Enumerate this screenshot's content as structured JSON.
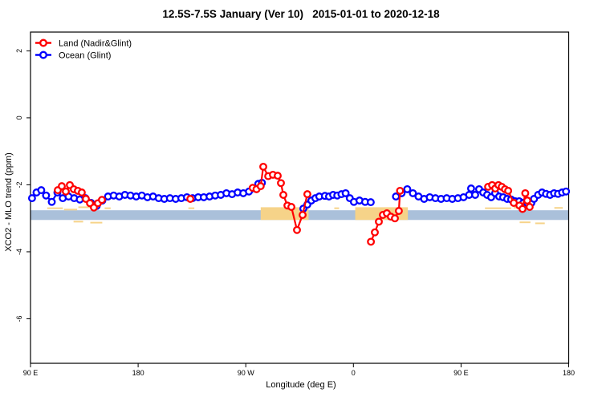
{
  "title": "12.5S-7.5S January (Ver 10)   2015-01-01 to 2020-12-18",
  "chart_data": {
    "type": "line",
    "title": "12.5S-7.5S January (Ver 10)   2015-01-01 to 2020-12-18",
    "xlabel": "Longitude (deg E)",
    "ylabel": "XCO2 - MLO trend (ppm)",
    "xlim": [
      90,
      540
    ],
    "ylim": [
      -7.33,
      2.56
    ],
    "grid": false,
    "legend_position": "top-left",
    "x_ticks": [
      {
        "lon": 90,
        "label": "90 E"
      },
      {
        "lon": 180,
        "label": "180"
      },
      {
        "lon": 270,
        "label": "90 W"
      },
      {
        "lon": 360,
        "label": "0"
      },
      {
        "lon": 450,
        "label": "90 E"
      },
      {
        "lon": 540,
        "label": "180"
      }
    ],
    "y_ticks": [
      {
        "v": 2,
        "label": "2"
      },
      {
        "v": 0,
        "label": "0"
      },
      {
        "v": -2,
        "label": "-2"
      },
      {
        "v": -4,
        "label": "-4"
      },
      {
        "v": -6,
        "label": "-6"
      }
    ],
    "bands": {
      "ocean_band": {
        "color": "#aac0da",
        "lon": [
          90,
          540
        ],
        "v_top": -2.76,
        "v_bottom": -3.05
      },
      "orange_segments": {
        "color": "#f6d389",
        "segments": [
          {
            "lon": [
              282.5,
              322.5
            ],
            "v_top": -2.67,
            "v_bottom": -3.05
          },
          {
            "lon": [
              361.5,
              405.5
            ],
            "v_top": -2.67,
            "v_bottom": -3.05
          }
        ]
      },
      "orange_speckles": {
        "color": "#f6d389",
        "marks": [
          {
            "lon": [
              104,
              117
            ],
            "v": -2.7
          },
          {
            "lon": [
              118,
              129
            ],
            "v": -2.74
          },
          {
            "lon": [
              130,
              141
            ],
            "v": -2.67
          },
          {
            "lon": [
              126,
              134
            ],
            "v": -3.1
          },
          {
            "lon": [
              140,
              150
            ],
            "v": -3.13
          },
          {
            "lon": [
              152,
              157
            ],
            "v": -2.7
          },
          {
            "lon": [
              222,
              227
            ],
            "v": -2.7
          },
          {
            "lon": [
              344,
              348
            ],
            "v": -2.7
          },
          {
            "lon": [
              470,
              492
            ],
            "v": -2.7
          },
          {
            "lon": [
              494,
              504
            ],
            "v": -2.68
          },
          {
            "lon": [
              499,
              508
            ],
            "v": -3.12
          },
          {
            "lon": [
              512,
              520
            ],
            "v": -3.15
          },
          {
            "lon": [
              528,
              535
            ],
            "v": -2.69
          }
        ]
      }
    },
    "series": [
      {
        "name": "Land (Nadir&Glint)",
        "color": "#ff0000",
        "segments": [
          [
            [
              112.8,
              -2.16
            ],
            [
              116.2,
              -2.04
            ],
            [
              119.5,
              -2.2
            ],
            [
              122.9,
              -2.01
            ],
            [
              126.2,
              -2.13
            ],
            [
              129.6,
              -2.18
            ],
            [
              132.9,
              -2.23
            ],
            [
              136.3,
              -2.42
            ],
            [
              139.7,
              -2.55
            ],
            [
              143.0,
              -2.68
            ],
            [
              146.4,
              -2.55
            ],
            [
              149.7,
              -2.45
            ]
          ],
          [
            [
              223.6,
              -2.42
            ]
          ],
          [
            [
              275.8,
              -2.09
            ],
            [
              279.0,
              -2.13
            ],
            [
              282.5,
              -2.04
            ],
            [
              284.6,
              -1.46
            ],
            [
              288.7,
              -1.74
            ],
            [
              292.7,
              -1.7
            ],
            [
              296.7,
              -1.73
            ],
            [
              299.4,
              -1.95
            ],
            [
              301.4,
              -2.3
            ],
            [
              304.8,
              -2.62
            ],
            [
              308.1,
              -2.66
            ],
            [
              312.8,
              -3.35
            ],
            [
              317.5,
              -2.9
            ],
            [
              321.5,
              -2.28
            ]
          ],
          [
            [
              374.6,
              -3.7
            ],
            [
              377.9,
              -3.42
            ],
            [
              381.3,
              -3.1
            ],
            [
              384.6,
              -2.9
            ],
            [
              388.0,
              -2.85
            ],
            [
              391.3,
              -2.95
            ],
            [
              394.7,
              -3.0
            ],
            [
              398.0,
              -2.78
            ],
            [
              399.0,
              -2.18
            ]
          ],
          [
            [
              472.6,
              -2.06
            ],
            [
              476.0,
              -2.01
            ],
            [
              478.6,
              -2.11
            ],
            [
              481.3,
              -2.01
            ],
            [
              484.0,
              -2.06
            ],
            [
              486.7,
              -2.13
            ],
            [
              489.4,
              -2.18
            ],
            [
              494.1,
              -2.54
            ],
            [
              498.8,
              -2.62
            ],
            [
              501.4,
              -2.72
            ],
            [
              503.7,
              -2.25
            ],
            [
              505.4,
              -2.47
            ],
            [
              507.4,
              -2.66
            ]
          ]
        ]
      },
      {
        "name": "Ocean (Glint)",
        "color": "#0000ff",
        "segments": [
          [
            [
              91.3,
              -2.4
            ],
            [
              95.0,
              -2.23
            ],
            [
              99.0,
              -2.16
            ],
            [
              103.0,
              -2.32
            ],
            [
              107.8,
              -2.51
            ],
            [
              112.5,
              -2.23
            ],
            [
              117.0,
              -2.4
            ],
            [
              121.8,
              -2.35
            ],
            [
              126.5,
              -2.4
            ],
            [
              131.2,
              -2.44
            ],
            [
              135.9,
              -2.4
            ],
            [
              140.6,
              -2.54
            ],
            [
              145.4,
              -2.63
            ],
            [
              150.1,
              -2.47
            ],
            [
              154.8,
              -2.35
            ],
            [
              159.5,
              -2.32
            ],
            [
              164.2,
              -2.35
            ],
            [
              168.9,
              -2.3
            ],
            [
              173.6,
              -2.32
            ],
            [
              178.4,
              -2.35
            ],
            [
              183.1,
              -2.32
            ],
            [
              187.8,
              -2.37
            ],
            [
              192.5,
              -2.35
            ],
            [
              197.2,
              -2.4
            ],
            [
              201.9,
              -2.42
            ],
            [
              206.6,
              -2.4
            ],
            [
              211.4,
              -2.42
            ],
            [
              216.1,
              -2.4
            ],
            [
              220.8,
              -2.37
            ],
            [
              225.5,
              -2.4
            ],
            [
              230.2,
              -2.37
            ],
            [
              234.9,
              -2.37
            ],
            [
              239.7,
              -2.35
            ],
            [
              244.4,
              -2.32
            ],
            [
              249.1,
              -2.3
            ],
            [
              253.8,
              -2.25
            ],
            [
              258.5,
              -2.28
            ],
            [
              263.2,
              -2.23
            ],
            [
              267.9,
              -2.25
            ],
            [
              272.7,
              -2.2
            ],
            [
              277.4,
              -2.11
            ],
            [
              280.5,
              -1.97
            ],
            [
              283.5,
              -1.94
            ]
          ],
          [
            [
              318.1,
              -2.71
            ],
            [
              321.5,
              -2.59
            ],
            [
              324.8,
              -2.47
            ],
            [
              328.2,
              -2.4
            ],
            [
              331.5,
              -2.35
            ],
            [
              336.2,
              -2.33
            ],
            [
              339.6,
              -2.35
            ],
            [
              343.0,
              -2.3
            ],
            [
              346.5,
              -2.32
            ],
            [
              350.0,
              -2.28
            ],
            [
              353.5,
              -2.25
            ],
            [
              357.0,
              -2.4
            ],
            [
              360.4,
              -2.51
            ],
            [
              365.1,
              -2.47
            ],
            [
              369.8,
              -2.51
            ],
            [
              374.5,
              -2.52
            ]
          ],
          [
            [
              395.6,
              -2.35
            ],
            [
              400.3,
              -2.25
            ],
            [
              405.0,
              -2.13
            ],
            [
              409.7,
              -2.25
            ],
            [
              414.4,
              -2.35
            ],
            [
              419.1,
              -2.42
            ],
            [
              423.8,
              -2.37
            ],
            [
              428.6,
              -2.4
            ],
            [
              433.3,
              -2.42
            ],
            [
              438.0,
              -2.4
            ],
            [
              442.7,
              -2.42
            ],
            [
              447.4,
              -2.4
            ],
            [
              452.1,
              -2.37
            ],
            [
              456.8,
              -2.3
            ],
            [
              458.4,
              -2.11
            ],
            [
              461.8,
              -2.3
            ],
            [
              465.1,
              -2.13
            ],
            [
              468.5,
              -2.23
            ],
            [
              471.8,
              -2.3
            ],
            [
              475.2,
              -2.37
            ],
            [
              478.5,
              -2.25
            ],
            [
              481.9,
              -2.35
            ],
            [
              485.2,
              -2.37
            ],
            [
              488.6,
              -2.42
            ],
            [
              491.9,
              -2.44
            ],
            [
              495.3,
              -2.49
            ],
            [
              498.6,
              -2.49
            ],
            [
              502.0,
              -2.54
            ],
            [
              505.3,
              -2.54
            ],
            [
              508.7,
              -2.54
            ],
            [
              511.0,
              -2.42
            ],
            [
              514.4,
              -2.3
            ],
            [
              517.7,
              -2.23
            ],
            [
              521.1,
              -2.27
            ],
            [
              524.4,
              -2.3
            ],
            [
              527.8,
              -2.25
            ],
            [
              531.1,
              -2.27
            ],
            [
              534.5,
              -2.23
            ],
            [
              537.8,
              -2.2
            ]
          ]
        ]
      }
    ]
  }
}
